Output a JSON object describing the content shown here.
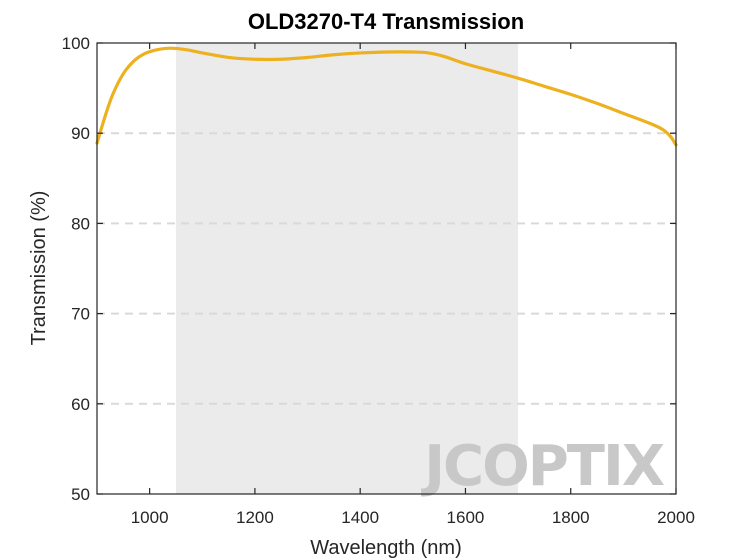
{
  "chart_data": {
    "type": "line",
    "title": "OLD3270-T4 Transmission",
    "xlabel": "Wavelength (nm)",
    "ylabel": "Transmission (%)",
    "xlim": [
      900,
      2000
    ],
    "ylim": [
      50,
      100
    ],
    "xticks": [
      1000,
      1200,
      1400,
      1600,
      1800,
      2000
    ],
    "yticks": [
      50,
      60,
      70,
      80,
      90,
      100
    ],
    "grid": "dashed horizontal",
    "highlight_band": [
      1050,
      1700
    ],
    "series": [
      {
        "color": "#EDB120",
        "x": [
          900,
          915,
          930,
          950,
          970,
          990,
          1010,
          1030,
          1050,
          1075,
          1100,
          1150,
          1200,
          1250,
          1300,
          1350,
          1400,
          1450,
          1500,
          1530,
          1560,
          1600,
          1650,
          1700,
          1750,
          1800,
          1850,
          1900,
          1950,
          1975,
          1990,
          2000
        ],
        "y": [
          88.9,
          91.8,
          94.3,
          96.6,
          98.0,
          98.8,
          99.2,
          99.4,
          99.4,
          99.2,
          98.9,
          98.4,
          98.2,
          98.2,
          98.4,
          98.7,
          98.9,
          99.0,
          99.0,
          98.9,
          98.5,
          97.7,
          96.9,
          96.1,
          95.2,
          94.3,
          93.3,
          92.2,
          91.1,
          90.4,
          89.6,
          88.7
        ]
      }
    ]
  },
  "watermark": {
    "text": "JCOPTIX",
    "color": "#c8c8c8"
  }
}
